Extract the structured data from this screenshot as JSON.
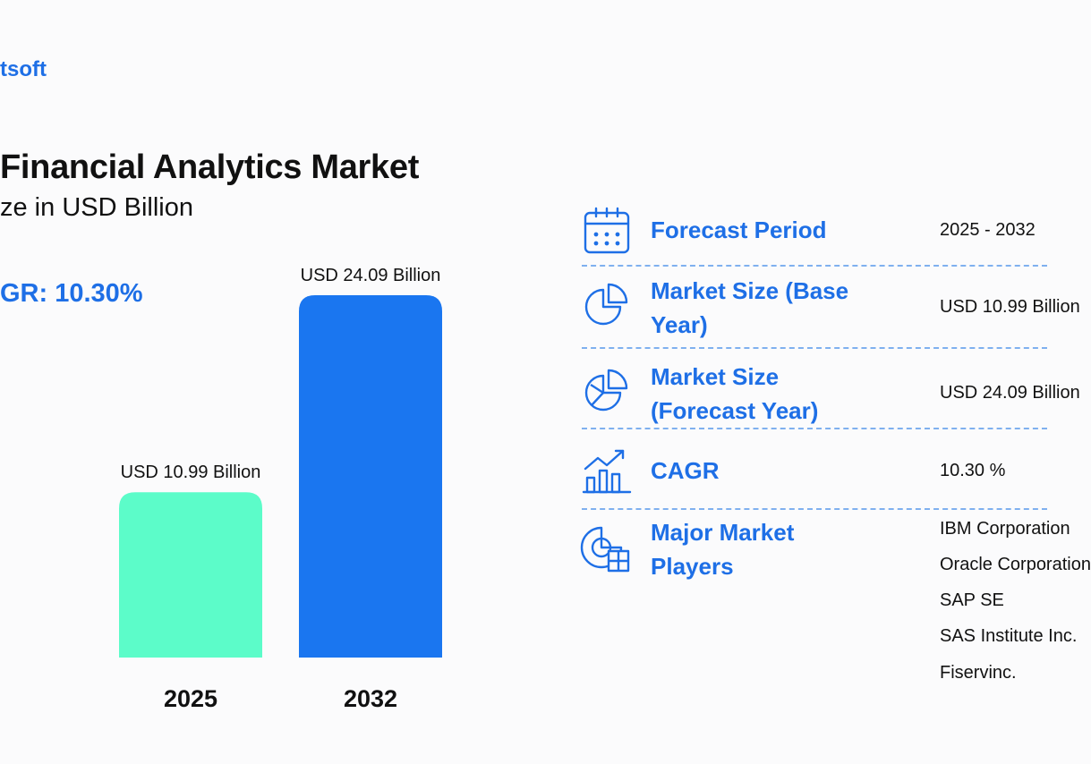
{
  "brand": {
    "logo_text": "tsoft"
  },
  "header": {
    "title": "Financial Analytics Market",
    "subtitle": "ze in USD Billion",
    "cagr_text": "GR: 10.30%"
  },
  "colors": {
    "accent": "#1e6fe6",
    "bar_2025": "#5cfcc9",
    "bar_2032": "#1a76f0",
    "text": "#111111",
    "divider": "#7fb0ef"
  },
  "chart_data": {
    "type": "bar",
    "categories": [
      "2025",
      "2032"
    ],
    "values": [
      10.99,
      24.09
    ],
    "data_labels": [
      "USD 10.99 Billion",
      "USD 24.09 Billion"
    ],
    "bar_colors": [
      "#5cfcc9",
      "#1a76f0"
    ],
    "title": "Financial Analytics Market",
    "ylabel": "",
    "xlabel": "",
    "grid": false,
    "unit": "USD Billion"
  },
  "info_table": {
    "rows": [
      {
        "label": "Forecast Period",
        "value": "2025 - 2032",
        "icon": "calendar-icon"
      },
      {
        "label": "Market Size (Base Year)",
        "value": "USD 10.99 Billion",
        "icon": "pie-chart-icon"
      },
      {
        "label": "Market Size (Forecast Year)",
        "value": "USD 24.09 Billion",
        "icon": "pie-chart-segmented-icon"
      },
      {
        "label": "CAGR",
        "value": "10.30 %",
        "icon": "growth-chart-icon"
      },
      {
        "label": "Major Market Players",
        "icon": "market-players-icon"
      }
    ],
    "players": [
      "IBM Corporation",
      "Oracle Corporation",
      "SAP SE",
      "SAS Institute Inc.",
      "Fiservinc."
    ]
  }
}
